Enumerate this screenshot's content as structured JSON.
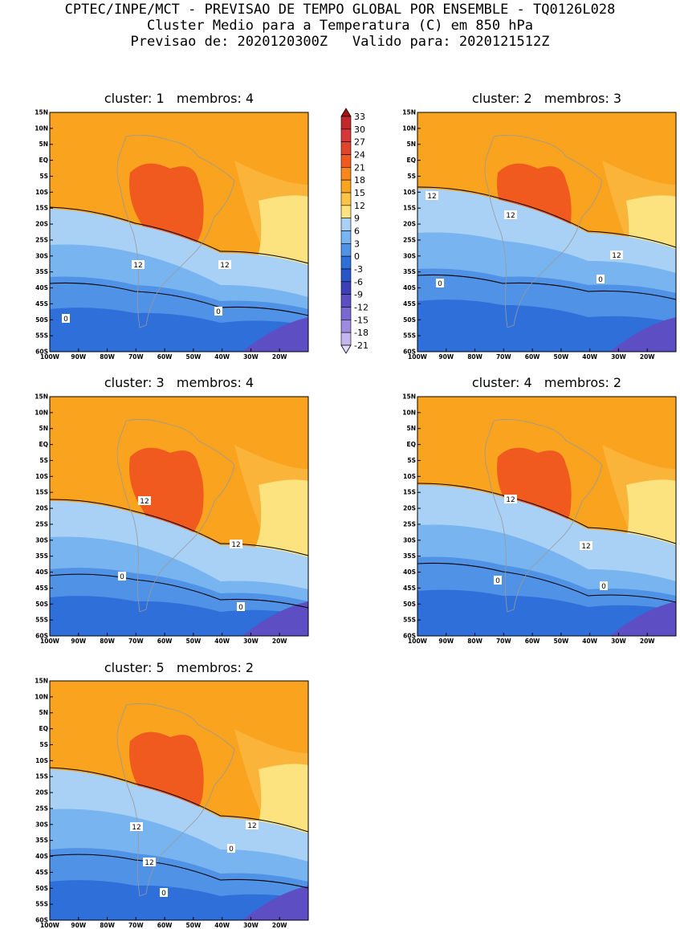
{
  "header": {
    "line1": "CPTEC/INPE/MCT - PREVISAO DE TEMPO GLOBAL POR ENSEMBLE - TQ0126L028",
    "line2": "Cluster Medio para a Temperatura (C) em 850 hPa",
    "line3": "Previsao de: 2020120300Z   Valido para: 2020121512Z"
  },
  "lat_ticks": [
    "15N",
    "10N",
    "5N",
    "EQ",
    "5S",
    "10S",
    "15S",
    "20S",
    "25S",
    "30S",
    "35S",
    "40S",
    "45S",
    "50S",
    "55S",
    "60S"
  ],
  "lon_ticks": [
    "100W",
    "90W",
    "80W",
    "70W",
    "60W",
    "50W",
    "40W",
    "30W",
    "20W"
  ],
  "colorbar": {
    "labels": [
      "33",
      "30",
      "27",
      "24",
      "21",
      "18",
      "15",
      "12",
      "9",
      "6",
      "3",
      "0",
      "-3",
      "-6",
      "-9",
      "-12",
      "-15",
      "-18",
      "-21"
    ],
    "colors": [
      "#a50f15",
      "#c0282a",
      "#d6383a",
      "#e0452b",
      "#f05a1e",
      "#f9871a",
      "#fba41e",
      "#fdc545",
      "#fde37f",
      "#a9d0f5",
      "#78b4ef",
      "#4f92e6",
      "#2f6fda",
      "#2a55c8",
      "#3d3fb8",
      "#5d4ec4",
      "#7a69d2",
      "#9b8ce0",
      "#c3b7ee",
      "#e2dcf7"
    ]
  },
  "panels": [
    {
      "title": "cluster: 1   membros: 4",
      "labels": {
        "c12a": "12",
        "c12b": "12",
        "c0a": "0",
        "c0b": "0"
      }
    },
    {
      "title": "cluster: 2   membros: 3",
      "labels": {
        "c12a": "12",
        "c12b": "12",
        "c12c": "12",
        "c0a": "0",
        "c0b": "0"
      }
    },
    {
      "title": "cluster: 3   membros: 4",
      "labels": {
        "c12a": "12",
        "c12b": "12",
        "c0a": "0",
        "c0b": "0"
      }
    },
    {
      "title": "cluster: 4   membros: 2",
      "labels": {
        "c12a": "12",
        "c12b": "12",
        "c0a": "0",
        "c0b": "0"
      }
    },
    {
      "title": "cluster: 5   membros: 2",
      "labels": {
        "c12a": "12",
        "c12b": "12",
        "c12c": "12",
        "c0a": "0",
        "c0b": "0"
      }
    }
  ]
}
